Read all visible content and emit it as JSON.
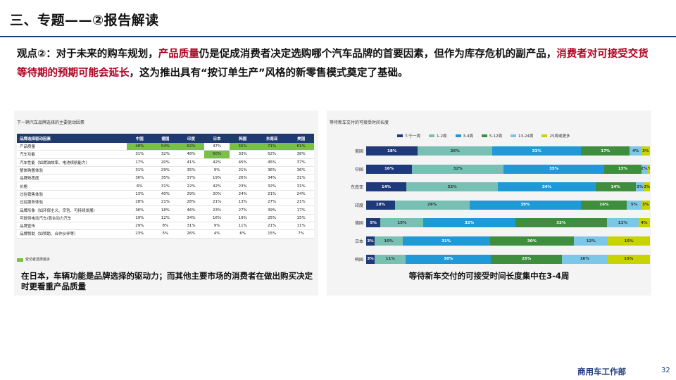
{
  "header": {
    "title": "三、专题——②报告解读"
  },
  "viewpoint": {
    "part1": "观点②：对于未来的购车规划，",
    "hl1": "产品质量",
    "part2": "仍是促成消费者决定选购哪个汽车品牌的首要因素，但作为库存危机的副产品，",
    "hl2": "消费者对可接受交货等待期的预期可能会延长",
    "part3": "，这为推出具有“按订单生产”风格的新零售模式奠定了基础。"
  },
  "left_panel": {
    "title": "下一辆汽车品牌选择的主要驱动因素",
    "columns": [
      "品牌选择驱动因素",
      "中国",
      "德国",
      "印度",
      "日本",
      "韩国",
      "东南亚",
      "美国"
    ],
    "rows": [
      [
        "产品质量",
        "48%",
        "54%",
        "62%",
        "47%",
        "55%",
        "71%",
        "61%"
      ],
      [
        "汽车功能",
        "31%",
        "32%",
        "48%",
        "50%",
        "33%",
        "52%",
        "38%"
      ],
      [
        "汽车性能（如燃油效率、电池续航能力）",
        "17%",
        "20%",
        "41%",
        "42%",
        "45%",
        "45%",
        "37%"
      ],
      [
        "整体购置体验",
        "31%",
        "29%",
        "35%",
        "9%",
        "21%",
        "36%",
        "36%"
      ],
      [
        "品牌熟悉度",
        "36%",
        "35%",
        "37%",
        "19%",
        "26%",
        "34%",
        "31%"
      ],
      [
        "价格",
        "6%",
        "31%",
        "22%",
        "42%",
        "23%",
        "32%",
        "31%"
      ],
      [
        "过往销售体验",
        "13%",
        "40%",
        "29%",
        "20%",
        "24%",
        "21%",
        "24%"
      ],
      [
        "过往服务体验",
        "28%",
        "21%",
        "28%",
        "21%",
        "13%",
        "27%",
        "21%"
      ],
      [
        "品牌形象（如环保主义、宗旨、可持续发展）",
        "36%",
        "18%",
        "46%",
        "23%",
        "27%",
        "39%",
        "17%"
      ],
      [
        "可提供电动汽车/混合动力汽车",
        "19%",
        "12%",
        "34%",
        "16%",
        "19%",
        "25%",
        "15%"
      ],
      [
        "品牌宣传",
        "29%",
        "8%",
        "31%",
        "9%",
        "11%",
        "21%",
        "11%"
      ],
      [
        "品牌赞助（如赞助、合作伙伴等）",
        "23%",
        "5%",
        "26%",
        "4%",
        "6%",
        "15%",
        "7%"
      ]
    ],
    "highlights": [
      [
        0,
        1
      ],
      [
        0,
        2
      ],
      [
        0,
        3
      ],
      [
        1,
        4
      ],
      [
        0,
        5
      ],
      [
        0,
        6
      ],
      [
        0,
        7
      ]
    ],
    "legend": "受访者选择最多",
    "caption": "在日本，车辆功能是品牌选择的驱动力；而其他主要市场的消费者在做出购买决定时更看重产品质量"
  },
  "right_panel": {
    "caption": "等待新车交付的可接受时间长度集中在3-4周"
  },
  "chart_data": {
    "type": "bar",
    "orientation": "horizontal",
    "stacked": true,
    "title": "等待新车交付的可接受时间长度",
    "categories": [
      "美国",
      "中国",
      "东南亚",
      "印度",
      "德国",
      "日本",
      "韩国"
    ],
    "series": [
      {
        "name": "少于一周",
        "color": "#1f3a7a",
        "values": [
          18,
          16,
          14,
          10,
          5,
          3,
          3
        ]
      },
      {
        "name": "1-2周",
        "color": "#79c0b4",
        "values": [
          26,
          32,
          32,
          26,
          15,
          10,
          11
        ]
      },
      {
        "name": "3-4周",
        "color": "#1f9ad6",
        "values": [
          31,
          35,
          34,
          39,
          32,
          31,
          30
        ]
      },
      {
        "name": "5-12周",
        "color": "#3e8e3e",
        "values": [
          17,
          13,
          14,
          16,
          32,
          30,
          25
        ]
      },
      {
        "name": "13-24周",
        "color": "#7cc6e8",
        "values": [
          4,
          2,
          3,
          5,
          11,
          12,
          16
        ]
      },
      {
        "name": "25周或更多",
        "color": "#c8d400",
        "values": [
          3,
          1,
          2,
          3,
          4,
          15,
          15
        ]
      }
    ],
    "display_labels": [
      [
        "18%",
        "26%",
        "31%",
        "17%",
        "4%",
        "3%"
      ],
      [
        "16%",
        "32%",
        "35%",
        "13%",
        "2%",
        "1%"
      ],
      [
        "14%",
        "32%",
        "34%",
        "14%",
        "3%",
        "2%"
      ],
      [
        "10%",
        "26%",
        "39%",
        "16%",
        "5%",
        "3%"
      ],
      [
        "5%",
        "15%",
        "32%",
        "32%",
        "11%",
        "4%"
      ],
      [
        "3%",
        "10%",
        "31%",
        "30%",
        "12%",
        "15%"
      ],
      [
        "3%",
        "11%",
        "30%",
        "25%",
        "16%",
        "15%"
      ]
    ]
  },
  "footer": {
    "dept": "商用车工作部",
    "page": "32"
  }
}
